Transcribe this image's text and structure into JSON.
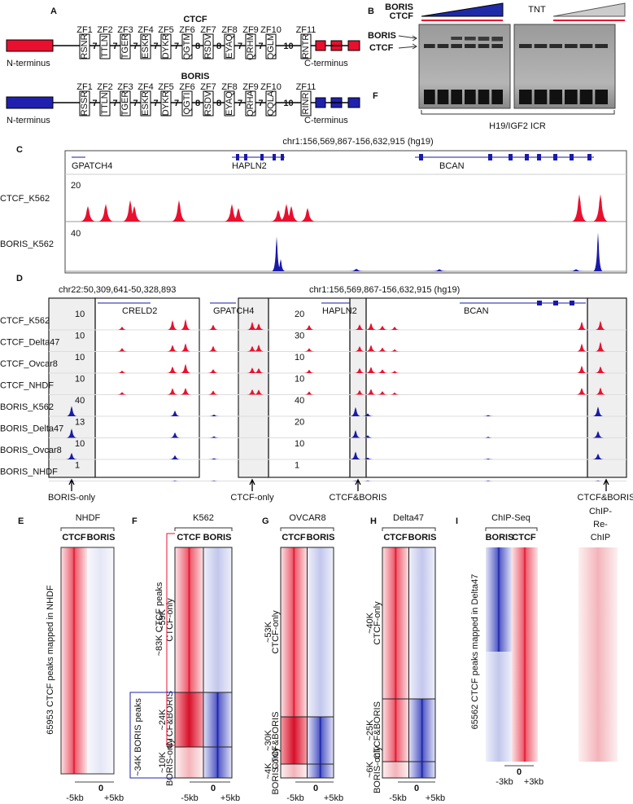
{
  "panel_a": {
    "letter": "A",
    "ctcf": {
      "name": "CTCF",
      "zf": [
        "ZF1",
        "ZF2",
        "ZF3",
        "ZF4",
        "ZF5",
        "ZF6",
        "ZF7",
        "ZF8",
        "ZF9",
        "ZF10",
        "ZF11"
      ],
      "motifs": [
        "RSNR",
        "TTLN",
        "TGER",
        "ESKR",
        "DYKR",
        "QGTM",
        "RSDV",
        "EYAQ",
        "QRHM",
        "QGLM",
        "RNTR"
      ],
      "linkers": [
        7,
        7,
        7,
        7,
        7,
        8,
        8,
        7,
        7,
        10
      ],
      "n_terminus": "N-terminus",
      "c_terminus": "C-terminus"
    },
    "boris": {
      "name": "BORIS",
      "zf": [
        "ZF1",
        "ZF2",
        "ZF3",
        "ZF4",
        "ZF5",
        "ZF6",
        "ZF7",
        "ZF8",
        "ZF9",
        "ZF10",
        "ZF11"
      ],
      "motifs": [
        "RSSR",
        "TTLN",
        "TGER",
        "ESKR",
        "DYKR",
        "QGTI",
        "RSDV",
        "EYAQ",
        "QRHA",
        "QQLA",
        "RINR"
      ],
      "linkers": [
        7,
        7,
        7,
        7,
        7,
        8,
        8,
        7,
        7,
        10
      ],
      "n_terminus": "N-terminus",
      "c_terminus": "C-terminus"
    }
  },
  "panel_b": {
    "letter": "B",
    "boris": "BORIS",
    "ctcf": "CTCF",
    "tnt": "TNT",
    "band_boris": "BORIS",
    "band_ctcf": "CTCF",
    "free": "F",
    "probe": "H19/IGF2 ICR"
  },
  "panel_c": {
    "letter": "C",
    "locus": "chr1:156,569,867-156,632,915 (hg19)",
    "genes": [
      "GPATCH4",
      "HAPLN2",
      "BCAN"
    ],
    "tracks": [
      {
        "name": "CTCF_K562",
        "scale": 20
      },
      {
        "name": "BORIS_K562",
        "scale": 40
      }
    ]
  },
  "panel_d": {
    "letter": "D",
    "loci": [
      "chr22:50,309,641-50,328,893",
      "chr1:156,569,867-156,632,915 (hg19)"
    ],
    "genes": [
      "CRELD2",
      "GPATCH4",
      "HAPLN2",
      "BCAN"
    ],
    "tracks": [
      {
        "name": "CTCF_K562",
        "scale_left": 10,
        "scale_right": 20
      },
      {
        "name": "CTCF_Delta47",
        "scale_left": 10,
        "scale_right": 30
      },
      {
        "name": "CTCF_Ovcar8",
        "scale_left": 10,
        "scale_right": 10
      },
      {
        "name": "CTCF_NHDF",
        "scale_left": 10,
        "scale_right": 10
      },
      {
        "name": "BORIS_K562",
        "scale_left": 40,
        "scale_right": 40
      },
      {
        "name": "BORIS_Delta47",
        "scale_left": 13,
        "scale_right": 20
      },
      {
        "name": "BORIS_Ovcar8",
        "scale_left": 10,
        "scale_right": 10
      },
      {
        "name": "BORIS_NHDF",
        "scale_left": 1,
        "scale_right": 1
      }
    ],
    "callouts": [
      "BORIS-only",
      "CTCF-only",
      "CTCF&BORIS",
      "CTCF&BORIS"
    ]
  },
  "panel_e": {
    "letter": "E",
    "cell": "NHDF",
    "columns": [
      "CTCF",
      "BORIS"
    ],
    "peaks_label": "65953 CTCF peaks mapped in NHDF",
    "axis": [
      "-5kb",
      "0",
      "+5kb"
    ]
  },
  "panel_f": {
    "letter": "F",
    "cell": "K562",
    "columns": [
      "CTCF",
      "BORIS"
    ],
    "groups": [
      [
        "~59K",
        "CTCF-only"
      ],
      [
        "~24K",
        "CTCF&BORIS"
      ],
      [
        "~10K",
        "BORIS-only"
      ]
    ],
    "brackets": [
      "~83K CTCF peaks",
      "~34K BORIS peaks"
    ],
    "axis": [
      "-5kb",
      "0",
      "+5kb"
    ]
  },
  "panel_g": {
    "letter": "G",
    "cell": "OVCAR8",
    "columns": [
      "CTCF",
      "BORIS"
    ],
    "groups": [
      [
        "~53K",
        "CTCF-only"
      ],
      [
        "~30K",
        "CTCF&BORIS"
      ],
      [
        "~4K",
        "BORIS-only"
      ]
    ],
    "axis": [
      "-5kb",
      "0",
      "+5kb"
    ]
  },
  "panel_h": {
    "letter": "H",
    "cell": "Delta47",
    "columns": [
      "CTCF",
      "BORIS"
    ],
    "groups": [
      [
        "~40K",
        "CTCF-only"
      ],
      [
        "~25K",
        "CTCF&BORIS"
      ],
      [
        "~6K",
        "BORIS-only"
      ]
    ],
    "axis": [
      "-5kb",
      "0",
      "+5kb"
    ]
  },
  "panel_i": {
    "letter": "I",
    "group": "ChIP-Seq",
    "rechip": [
      "ChIP-",
      "Re-",
      "ChIP"
    ],
    "columns": [
      "BORIS",
      "CTCF"
    ],
    "peaks_label": "65562 CTCF peaks mapped in Delta47",
    "axis": [
      "-3kb",
      "0",
      "+3kb"
    ]
  }
}
